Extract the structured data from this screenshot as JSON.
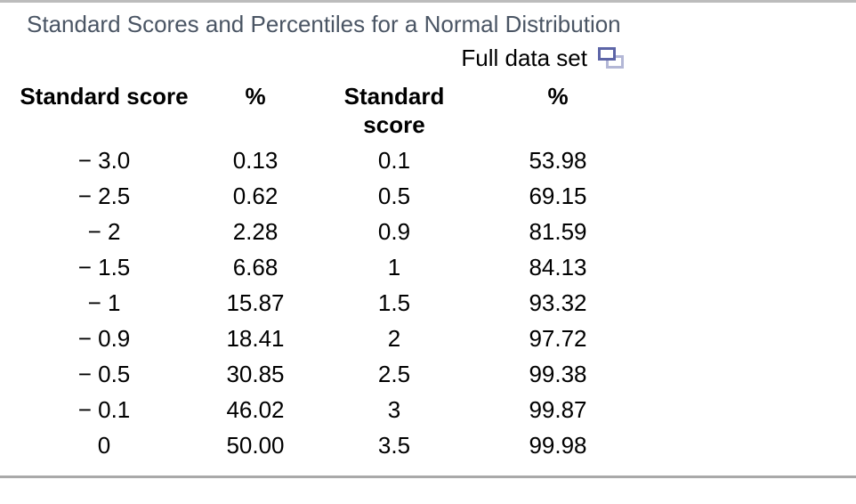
{
  "header": {
    "title": "Standard Scores and Percentiles for a Normal Distribution",
    "full_data_set_label": "Full data set",
    "popup_icon": "popup-window-icon"
  },
  "colors": {
    "title_text": "#4a5564",
    "body_text": "#000000",
    "icon_front_border": "#5d65a7",
    "icon_back_border": "#b3b7d6",
    "top_rule": "#bcbcbc",
    "bottom_rule": "#a9a9a9"
  },
  "chart_data": {
    "type": "table",
    "title": "Standard Scores and Percentiles for a Normal Distribution",
    "columns": [
      "Standard score",
      "%",
      "Standard score",
      "%"
    ],
    "rows": [
      [
        "− 3.0",
        "0.13",
        "0.1",
        "53.98"
      ],
      [
        "− 2.5",
        "0.62",
        "0.5",
        "69.15"
      ],
      [
        "− 2",
        "2.28",
        "0.9",
        "81.59"
      ],
      [
        "− 1.5",
        "6.68",
        "1",
        "84.13"
      ],
      [
        "− 1",
        "15.87",
        "1.5",
        "93.32"
      ],
      [
        "− 0.9",
        "18.41",
        "2",
        "97.72"
      ],
      [
        "− 0.5",
        "30.85",
        "2.5",
        "99.38"
      ],
      [
        "− 0.1",
        "46.02",
        "3",
        "99.87"
      ],
      [
        "0",
        "50.00",
        "3.5",
        "99.98"
      ]
    ]
  }
}
